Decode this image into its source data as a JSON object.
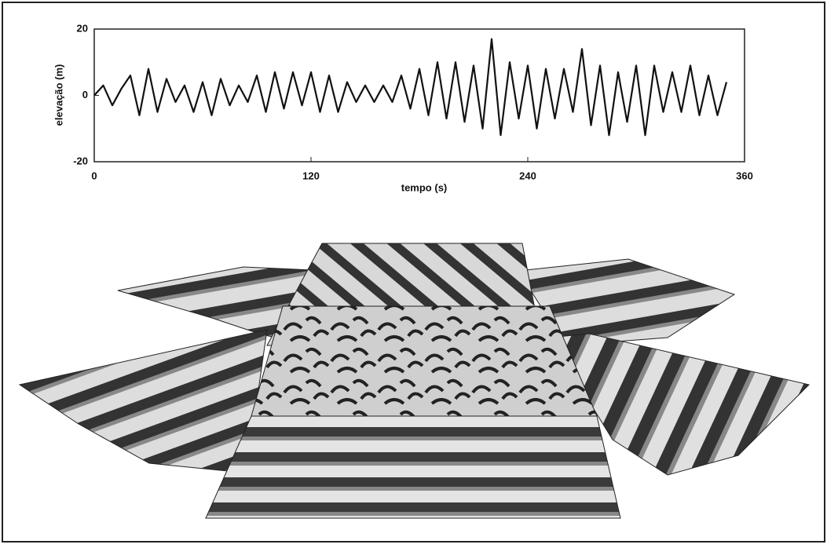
{
  "chart_data": {
    "type": "line",
    "xlabel": "tempo (s)",
    "ylabel": "elevação (m)",
    "x": [
      0,
      5,
      10,
      15,
      20,
      25,
      30,
      35,
      40,
      45,
      50,
      55,
      60,
      65,
      70,
      75,
      80,
      85,
      90,
      95,
      100,
      105,
      110,
      115,
      120,
      125,
      130,
      135,
      140,
      145,
      150,
      155,
      160,
      165,
      170,
      175,
      180,
      185,
      190,
      195,
      200,
      205,
      210,
      215,
      220,
      225,
      230,
      235,
      240,
      245,
      250,
      255,
      260,
      265,
      270,
      275,
      280,
      285,
      290,
      295,
      300,
      305,
      310,
      315,
      320,
      325,
      330,
      335,
      340,
      345,
      350
    ],
    "values": [
      0,
      3,
      -3,
      2,
      6,
      -6,
      8,
      -5,
      5,
      -2,
      3,
      -5,
      4,
      -6,
      5,
      -3,
      3,
      -2,
      6,
      -5,
      7,
      -4,
      7,
      -3,
      7,
      -5,
      6,
      -5,
      4,
      -2,
      3,
      -2,
      3,
      -2,
      6,
      -4,
      8,
      -6,
      10,
      -7,
      10,
      -8,
      9,
      -10,
      17,
      -12,
      10,
      -7,
      9,
      -10,
      8,
      -7,
      8,
      -5,
      14,
      -9,
      9,
      -12,
      7,
      -8,
      9,
      -12,
      9,
      -5,
      7,
      -5,
      9,
      -6,
      6,
      -6,
      4
    ],
    "color": "#111111",
    "xlim": [
      0,
      360
    ],
    "xticks": [
      0,
      120,
      240,
      360
    ],
    "ylim": [
      -20,
      20
    ],
    "yticks": [
      -20,
      0,
      20
    ]
  }
}
